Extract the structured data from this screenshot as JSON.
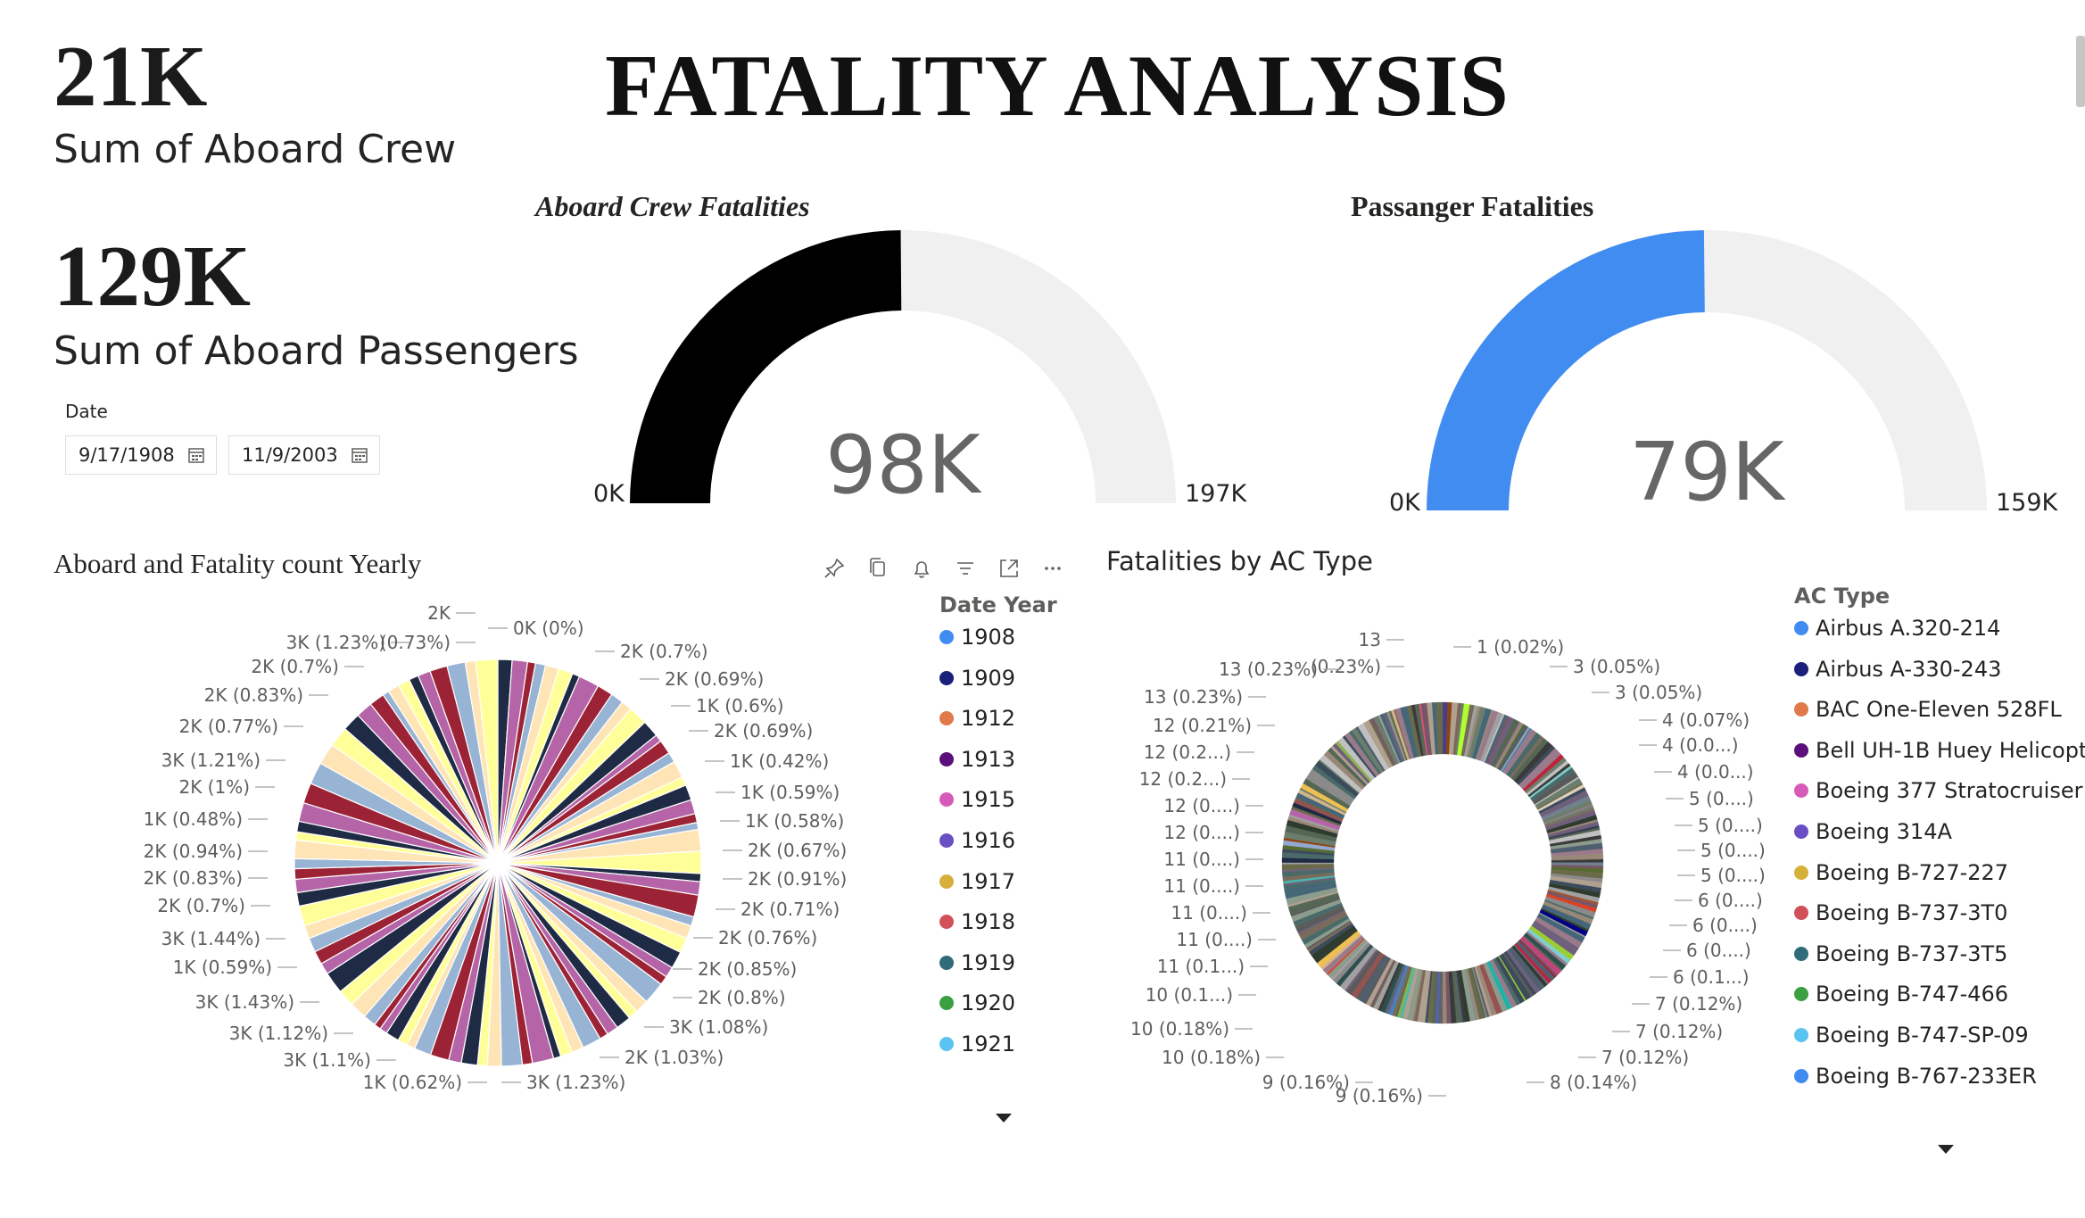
{
  "page_title": "FATALITY ANALYSIS",
  "kpis": [
    {
      "value": "21K",
      "label": "Sum of Aboard Crew"
    },
    {
      "value": "129K",
      "label": "Sum of Aboard Passengers"
    }
  ],
  "date_slicer": {
    "label": "Date",
    "start": "9/17/1908",
    "end": "11/9/2003"
  },
  "colors": {
    "crew_gauge": "#000000",
    "passenger_gauge": "#418cf0",
    "gauge_track": "#f0f0f0"
  },
  "chart_data": [
    {
      "type": "gauge",
      "title": "Aboard Crew Fatalities",
      "value": 98,
      "value_label": "98K",
      "min_label": "0K",
      "max_label": "197K",
      "range": [
        0,
        197
      ]
    },
    {
      "type": "gauge",
      "title": "Passanger Fatalities",
      "value": 79,
      "value_label": "79K",
      "min_label": "0K",
      "max_label": "159K",
      "range": [
        0,
        159
      ]
    },
    {
      "type": "pie",
      "title": "Aboard and Fatality count Yearly",
      "legend_title": "Date Year",
      "legend": [
        {
          "label": "1908",
          "color": "#418cf0"
        },
        {
          "label": "1909",
          "color": "#1a1f7a"
        },
        {
          "label": "1912",
          "color": "#e07a4a"
        },
        {
          "label": "1913",
          "color": "#5a0f7a"
        },
        {
          "label": "1915",
          "color": "#d65bb8"
        },
        {
          "label": "1916",
          "color": "#6a4fc4"
        },
        {
          "label": "1917",
          "color": "#d6b03a"
        },
        {
          "label": "1918",
          "color": "#d2505a"
        },
        {
          "label": "1919",
          "color": "#2f6b78"
        },
        {
          "label": "1920",
          "color": "#3aa042"
        },
        {
          "label": "1921",
          "color": "#5ac3f0"
        }
      ],
      "slice_labels": [
        "0K (0%)",
        "2K (0.7%)",
        "2K (0.69%)",
        "1K (0.6%)",
        "2K (0.69%)",
        "1K (0.42%)",
        "1K (0.59%)",
        "1K (0.58%)",
        "2K (0.67%)",
        "2K (0.91%)",
        "2K (0.71%)",
        "2K (0.76%)",
        "2K (0.85%)",
        "2K (0.8%)",
        "3K (1.08%)",
        "2K (1.03%)",
        "3K (1.23%)",
        "1K (0.62%)",
        "3K (1.1%)",
        "3K (1.12%)",
        "3K (1.43%)",
        "1K (0.59%)",
        "3K (1.44%)",
        "2K (0.7%)",
        "2K (0.83%)",
        "2K (0.94%)",
        "1K (0.48%)",
        "2K (1%)",
        "3K (1.21%)",
        "2K (0.77%)",
        "2K (0.83%)",
        "2K (0.7%)",
        "3K (1.23%)",
        "2K",
        "(0.73%)"
      ]
    },
    {
      "type": "donut",
      "title": "Fatalities by AC Type",
      "legend_title": "AC Type",
      "legend": [
        {
          "label": "Airbus A.320-214",
          "color": "#418cf0"
        },
        {
          "label": "Airbus A-330-243",
          "color": "#1a1f7a"
        },
        {
          "label": "BAC One-Eleven 528FL",
          "color": "#e07a4a"
        },
        {
          "label": "Bell UH-1B Huey Helicopter",
          "color": "#5a0f7a"
        },
        {
          "label": "Boeing  377 Stratocruiser",
          "color": "#d65bb8"
        },
        {
          "label": "Boeing 314A",
          "color": "#6a4fc4"
        },
        {
          "label": "Boeing B-727-227",
          "color": "#d6b03a"
        },
        {
          "label": "Boeing B-737-3T0",
          "color": "#d2505a"
        },
        {
          "label": "Boeing B-737-3T5",
          "color": "#2f6b78"
        },
        {
          "label": "Boeing B-747-466",
          "color": "#3aa042"
        },
        {
          "label": "Boeing B-747-SP-09",
          "color": "#5ac3f0"
        },
        {
          "label": "Boeing B-767-233ER",
          "color": "#418cf0"
        }
      ],
      "slice_labels": [
        "13",
        "(0.23%)",
        "1 (0.02%)",
        "3 (0.05%)",
        "3 (0.05%)",
        "4 (0.07%)",
        "4 (0.0...)",
        "4 (0.0...)",
        "5 (0....)",
        "5 (0....)",
        "5 (0....)",
        "5 (0....)",
        "6 (0....)",
        "6 (0....)",
        "6 (0....)",
        "6 (0.1...)",
        "7 (0.12%)",
        "7 (0.12%)",
        "7 (0.12%)",
        "8 (0.14%)",
        "9 (0.16%)",
        "9 (0.16%)",
        "10 (0.18%)",
        "10 (0.18%)",
        "10 (0.1...)",
        "11 (0.1...)",
        "11 (0....)",
        "11 (0....)",
        "11 (0....)",
        "11 (0....)",
        "12 (0....)",
        "12 (0....)",
        "12 (0.2...)",
        "12 (0.2...)",
        "12 (0.21%)",
        "13 (0.23%)",
        "13 (0.23%)"
      ]
    }
  ]
}
